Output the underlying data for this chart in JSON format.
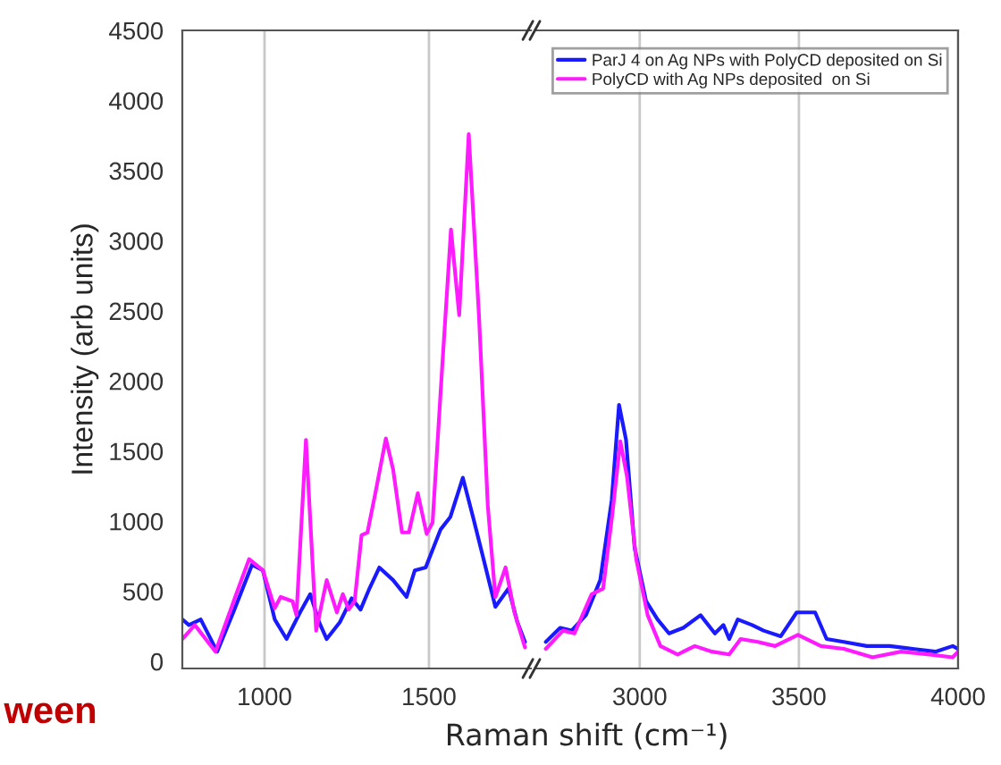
{
  "chart_data": [
    {
      "type": "line",
      "ylabel": "Intensity (arb units)",
      "xlim": [
        750,
        1810
      ],
      "xticks": [
        1000,
        1500
      ],
      "ylim": [
        -50,
        4500
      ],
      "yticks": [
        0,
        500,
        1000,
        1500,
        2000,
        2500,
        3000,
        3500,
        4000,
        4500
      ],
      "grid": "x",
      "legend": false,
      "annotations": [
        "ween"
      ],
      "series": [
        {
          "color": "#1a1aff",
          "x": [
            750,
            770,
            806,
            856,
            905,
            962,
            995,
            1031,
            1067,
            1108,
            1139,
            1166,
            1189,
            1229,
            1265,
            1292,
            1319,
            1349,
            1391,
            1432,
            1457,
            1490,
            1535,
            1565,
            1603,
            1634,
            1666,
            1702,
            1742,
            1769,
            1792
          ],
          "values": [
            300,
            260,
            300,
            70,
            350,
            690,
            650,
            300,
            160,
            350,
            480,
            280,
            160,
            280,
            450,
            370,
            520,
            670,
            580,
            460,
            650,
            670,
            940,
            1030,
            1310,
            1030,
            730,
            390,
            520,
            280,
            140
          ]
        },
        {
          "color": "#ff1aff",
          "x": [
            750,
            788,
            851,
            914,
            953,
            995,
            1031,
            1049,
            1085,
            1097,
            1126,
            1157,
            1189,
            1220,
            1238,
            1256,
            1274,
            1295,
            1313,
            1337,
            1369,
            1391,
            1418,
            1439,
            1466,
            1493,
            1511,
            1540,
            1567,
            1592,
            1621,
            1652,
            1679,
            1702,
            1733,
            1760,
            1792
          ],
          "values": [
            160,
            260,
            70,
            480,
            730,
            650,
            380,
            460,
            430,
            330,
            1580,
            220,
            580,
            350,
            480,
            370,
            430,
            900,
            920,
            1200,
            1590,
            1370,
            920,
            920,
            1200,
            910,
            990,
            2090,
            3080,
            2470,
            3760,
            2470,
            1110,
            460,
            670,
            350,
            100
          ]
        }
      ]
    },
    {
      "type": "line",
      "xlabel": "Raman shift (cm⁻¹)",
      "xlim": [
        2675,
        4000
      ],
      "xticks": [
        3000,
        3500,
        4000
      ],
      "ylim": [
        -50,
        4500
      ],
      "yticks": [
        0,
        500,
        1000,
        1500,
        2000,
        2500,
        3000,
        3500,
        4000,
        4500
      ],
      "tick_labels": "x",
      "grid": "x",
      "legend": "top right",
      "series": [
        {
          "name": "ParJ 4 on Ag NPs with PolyCD deposited on Si",
          "color": "#1a1aff",
          "x": [
            2705,
            2750,
            2786,
            2831,
            2876,
            2912,
            2935,
            2957,
            2984,
            3020,
            3056,
            3092,
            3137,
            3191,
            3236,
            3263,
            3281,
            3308,
            3353,
            3389,
            3443,
            3493,
            3551,
            3587,
            3641,
            3713,
            3785,
            3857,
            3929,
            3983,
            4000
          ],
          "values": [
            140,
            240,
            220,
            330,
            580,
            1150,
            1830,
            1580,
            810,
            430,
            300,
            200,
            240,
            330,
            200,
            260,
            160,
            300,
            260,
            220,
            180,
            350,
            350,
            160,
            140,
            110,
            110,
            90,
            70,
            110,
            90
          ]
        },
        {
          "name": "PolyCD with Ag NPs deposited  on Si",
          "color": "#ff1aff",
          "x": [
            2705,
            2759,
            2795,
            2849,
            2885,
            2915,
            2939,
            2960,
            2989,
            3025,
            3065,
            3119,
            3173,
            3227,
            3281,
            3317,
            3371,
            3425,
            3497,
            3569,
            3641,
            3731,
            3821,
            3911,
            3983,
            4000
          ],
          "values": [
            90,
            220,
            200,
            480,
            520,
            1070,
            1570,
            1320,
            730,
            330,
            110,
            50,
            110,
            70,
            50,
            160,
            140,
            110,
            190,
            110,
            90,
            30,
            70,
            50,
            30,
            70
          ]
        }
      ]
    }
  ]
}
